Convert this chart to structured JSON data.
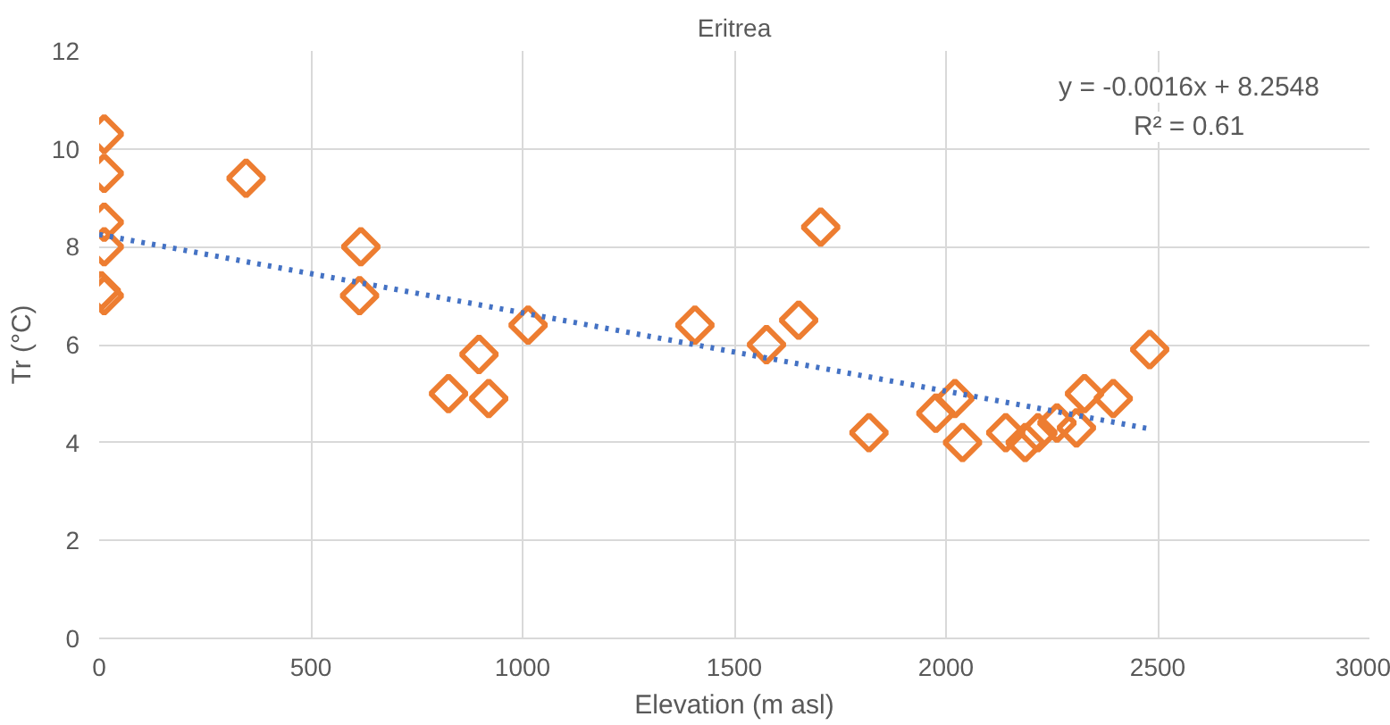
{
  "chart_data": {
    "type": "scatter",
    "title": "Eritrea",
    "xlabel": "Elevation (m asl)",
    "ylabel": "Tr (°C)",
    "annotations": [
      "y = -0.0016x + 8.2548",
      "R² = 0.61"
    ],
    "series": [
      {
        "color": "#ed7d31",
        "marker": "diamond",
        "x": [
          12,
          12,
          12,
          12,
          5,
          12,
          347,
          618,
          615,
          1013,
          897,
          825,
          920,
          1704,
          1407,
          1652,
          1576,
          1818,
          1976,
          2021,
          2039,
          2141,
          2187,
          2217,
          2262,
          2308,
          2327,
          2395,
          2481
        ],
        "values": [
          10.3,
          9.5,
          8.5,
          8.0,
          7.1,
          7.0,
          9.4,
          8.0,
          7.0,
          6.4,
          5.8,
          5.0,
          4.9,
          8.4,
          6.4,
          6.5,
          6.0,
          4.2,
          4.6,
          4.9,
          4.0,
          4.2,
          4.0,
          4.2,
          4.4,
          4.3,
          5.0,
          4.9,
          5.9
        ]
      },
      {
        "type": "line",
        "color": "#4472c4",
        "line_style": "dotted",
        "marker": "none",
        "x": [
          0,
          2481
        ],
        "values": [
          8.25,
          4.28
        ]
      }
    ],
    "xlim": [
      0,
      3000
    ],
    "xticks": [
      0,
      500,
      1000,
      1500,
      2000,
      2500,
      3000
    ],
    "ylim": [
      0,
      12
    ],
    "yticks": [
      0,
      2,
      4,
      6,
      8,
      10,
      12
    ],
    "grid": true
  }
}
